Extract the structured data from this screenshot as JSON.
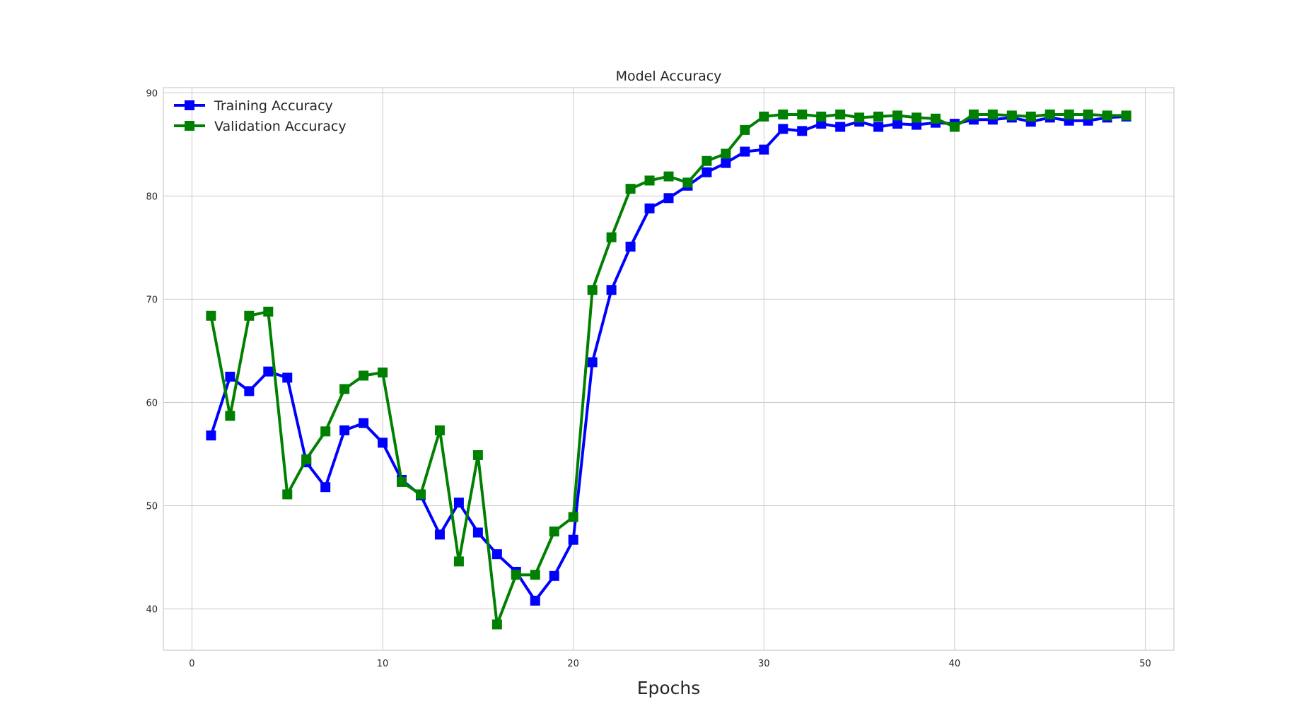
{
  "chart_data": {
    "type": "line",
    "title": "Model Accuracy",
    "xlabel": "Epochs",
    "ylabel": "",
    "xlim": [
      -1.5,
      51.5
    ],
    "ylim": [
      36,
      90.5
    ],
    "xticks": [
      0,
      10,
      20,
      30,
      40,
      50
    ],
    "yticks": [
      40,
      50,
      60,
      70,
      80,
      90
    ],
    "grid": true,
    "legend_position": "top-left",
    "marker": "square",
    "x": [
      1,
      2,
      3,
      4,
      5,
      6,
      7,
      8,
      9,
      10,
      11,
      12,
      13,
      14,
      15,
      16,
      17,
      18,
      19,
      20,
      21,
      22,
      23,
      24,
      25,
      26,
      27,
      28,
      29,
      30,
      31,
      32,
      33,
      34,
      35,
      36,
      37,
      38,
      39,
      40,
      41,
      42,
      43,
      44,
      45,
      46,
      47,
      48,
      49
    ],
    "series": [
      {
        "name": "Training Accuracy",
        "color": "#0000ff",
        "values": [
          56.8,
          62.5,
          61.1,
          63.0,
          62.4,
          54.2,
          51.8,
          57.3,
          58.0,
          56.1,
          52.5,
          51.0,
          47.2,
          50.3,
          47.4,
          45.3,
          43.6,
          40.8,
          43.2,
          46.7,
          63.9,
          70.9,
          75.1,
          78.8,
          79.8,
          81.0,
          82.3,
          83.2,
          84.3,
          84.5,
          86.5,
          86.3,
          87.0,
          86.7,
          87.2,
          86.7,
          87.0,
          86.9,
          87.1,
          87.0,
          87.4,
          87.4,
          87.6,
          87.2,
          87.6,
          87.3,
          87.3,
          87.6,
          87.7
        ]
      },
      {
        "name": "Validation Accuracy",
        "color": "#008000",
        "values": [
          68.4,
          58.7,
          68.4,
          68.8,
          51.1,
          54.5,
          57.2,
          61.3,
          62.6,
          62.9,
          52.3,
          51.1,
          57.3,
          44.6,
          54.9,
          38.5,
          43.3,
          43.3,
          47.5,
          48.9,
          70.9,
          76.0,
          80.7,
          81.5,
          81.9,
          81.3,
          83.4,
          84.1,
          86.4,
          87.7,
          87.9,
          87.9,
          87.7,
          87.9,
          87.6,
          87.7,
          87.8,
          87.6,
          87.5,
          86.7,
          87.9,
          87.9,
          87.8,
          87.7,
          87.9,
          87.9,
          87.9,
          87.8,
          87.8
        ]
      }
    ]
  }
}
